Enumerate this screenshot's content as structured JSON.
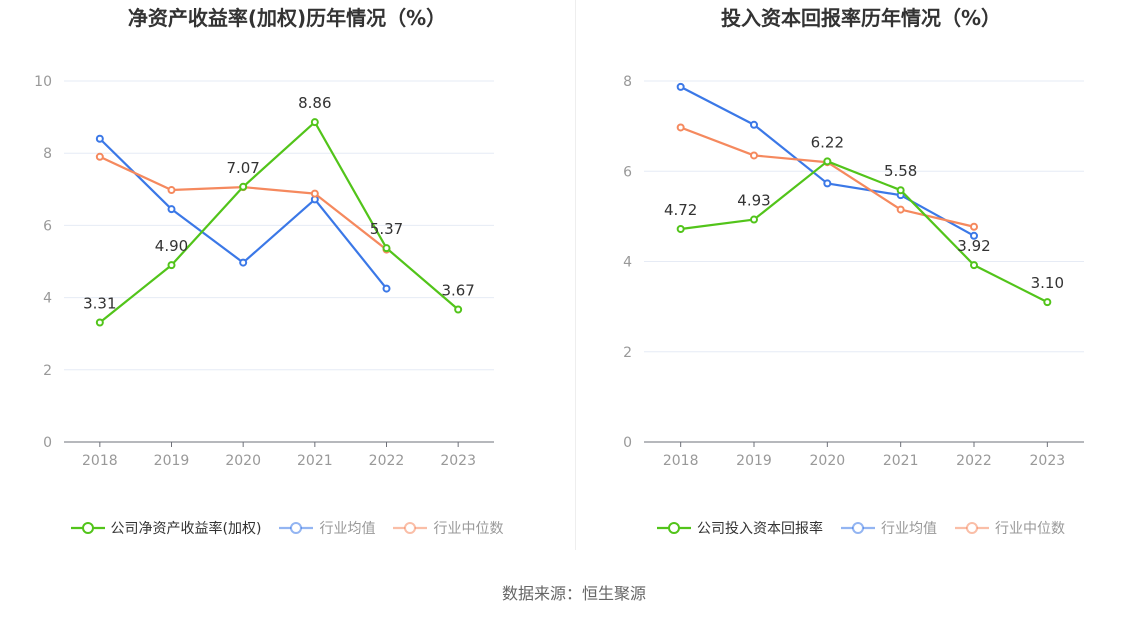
{
  "source_text": "数据来源：恒生聚源",
  "colors": {
    "company": "#52c41a",
    "avg": "#3b78e7",
    "median": "#f5895e",
    "axis": "#999999",
    "grid": "#e6ebf5"
  },
  "chart_data": [
    {
      "type": "line",
      "title": "净资产收益率(加权)历年情况（%）",
      "categories": [
        "2018",
        "2019",
        "2020",
        "2021",
        "2022",
        "2023"
      ],
      "ylim": [
        0,
        10
      ],
      "yticks": [
        0,
        2,
        4,
        6,
        8,
        10
      ],
      "grid": true,
      "legend_position": "bottom",
      "series": [
        {
          "name": "公司净资产收益率(加权)",
          "key": "company",
          "values": [
            3.31,
            4.9,
            7.07,
            8.86,
            5.37,
            3.67
          ],
          "labels": [
            "3.31",
            "4.90",
            "7.07",
            "8.86",
            "5.37",
            "3.67"
          ]
        },
        {
          "name": "行业均值",
          "key": "avg",
          "values": [
            8.4,
            6.45,
            4.97,
            6.72,
            4.25,
            null
          ]
        },
        {
          "name": "行业中位数",
          "key": "median",
          "values": [
            7.9,
            6.98,
            7.06,
            6.88,
            5.33,
            null
          ]
        }
      ]
    },
    {
      "type": "line",
      "title": "投入资本回报率历年情况（%）",
      "categories": [
        "2018",
        "2019",
        "2020",
        "2021",
        "2022",
        "2023"
      ],
      "ylim": [
        0,
        8
      ],
      "yticks": [
        0,
        2,
        4,
        6,
        8
      ],
      "grid": true,
      "legend_position": "bottom",
      "series": [
        {
          "name": "公司投入资本回报率",
          "key": "company",
          "values": [
            4.72,
            4.93,
            6.22,
            5.58,
            3.92,
            3.1
          ],
          "labels": [
            "4.72",
            "4.93",
            "6.22",
            "5.58",
            "3.92",
            "3.10"
          ]
        },
        {
          "name": "行业均值",
          "key": "avg",
          "values": [
            7.87,
            7.03,
            5.73,
            5.47,
            4.57,
            null
          ]
        },
        {
          "name": "行业中位数",
          "key": "median",
          "values": [
            6.97,
            6.35,
            6.2,
            5.15,
            4.77,
            null
          ]
        }
      ]
    }
  ]
}
